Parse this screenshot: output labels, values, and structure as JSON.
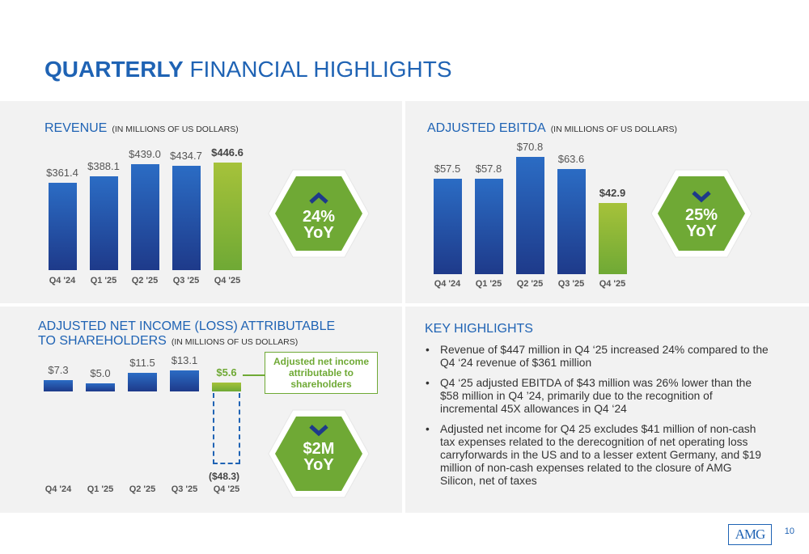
{
  "title": {
    "bold": "QUARTERLY",
    "rest": "FINANCIAL HIGHLIGHTS"
  },
  "revenue": {
    "label": "REVENUE",
    "units": "(IN MILLIONS OF US DOLLARS)",
    "badge_line1": "24%",
    "badge_line2": "YoY",
    "badge_direction": "up"
  },
  "ebitda": {
    "label": "ADJUSTED EBITDA",
    "units": "(IN MILLIONS OF US DOLLARS)",
    "badge_line1": "25%",
    "badge_line2": "YoY",
    "badge_direction": "down"
  },
  "net_income": {
    "label_line1": "ADJUSTED NET INCOME (LOSS) ATTRIBUTABLE",
    "label_line2": "TO SHAREHOLDERS",
    "units": "(IN MILLIONS OF US DOLLARS)",
    "callout": "Adjusted net income attributable to shareholders",
    "badge_line1": "$2M",
    "badge_line2": "YoY",
    "badge_direction": "down"
  },
  "key_highlights": {
    "title": "KEY HIGHLIGHTS",
    "bullets": [
      "Revenue of $447 million in Q4 ‘25 increased 24% compared to the Q4 ‘24 revenue of $361 million",
      "Q4 ‘25 adjusted EBITDA of $43 million was 26% lower than the $58 million in Q4 ’24, primarily due to the recognition of incremental 45X allowances in Q4 ‘24",
      "Adjusted net income for Q4 25 excludes $41 million of non-cash tax expenses related to the derecognition of net operating loss carryforwards in the US and to a lesser extent Germany, and $19 million of non-cash expenses related to the closure of AMG Silicon, net of taxes"
    ]
  },
  "page_number": "10",
  "logo_text": "AMG",
  "colors": {
    "blue_top": "#2b6cc4",
    "blue_bottom": "#1e3a8a",
    "green_top": "#a6c23a",
    "green_bottom": "#6fa935",
    "title_blue": "#1f63b4"
  },
  "chart_data": [
    {
      "id": "revenue",
      "type": "bar",
      "categories": [
        "Q4 '24",
        "Q1 '25",
        "Q2 '25",
        "Q3 '25",
        "Q4 '25"
      ],
      "values": [
        361.4,
        388.1,
        439.0,
        434.7,
        446.6
      ],
      "value_labels": [
        "$361.4",
        "$388.1",
        "$439.0",
        "$434.7",
        "$446.6"
      ],
      "title": "REVENUE",
      "ylim": [
        0,
        446.6
      ]
    },
    {
      "id": "ebitda",
      "type": "bar",
      "categories": [
        "Q4 '24",
        "Q1 '25",
        "Q2 '25",
        "Q3 '25",
        "Q4 '25"
      ],
      "values": [
        57.5,
        57.8,
        70.8,
        63.6,
        42.9
      ],
      "value_labels": [
        "$57.5",
        "$57.8",
        "$70.8",
        "$63.6",
        "$42.9"
      ],
      "title": "ADJUSTED EBITDA",
      "ylim": [
        0,
        70.8
      ]
    },
    {
      "id": "net_income",
      "type": "bar",
      "categories": [
        "Q4 '24",
        "Q1 '25",
        "Q2 '25",
        "Q3 '25",
        "Q4 '25"
      ],
      "values": [
        7.3,
        5.0,
        11.5,
        13.1,
        5.6
      ],
      "value_labels": [
        "$7.3",
        "$5.0",
        "$11.5",
        "$13.1",
        "$5.6"
      ],
      "unadjusted_q4_25": -48.3,
      "unadjusted_q4_25_label": "($48.3)",
      "title": "ADJUSTED NET INCOME (LOSS) ATTRIBUTABLE TO SHAREHOLDERS"
    }
  ]
}
